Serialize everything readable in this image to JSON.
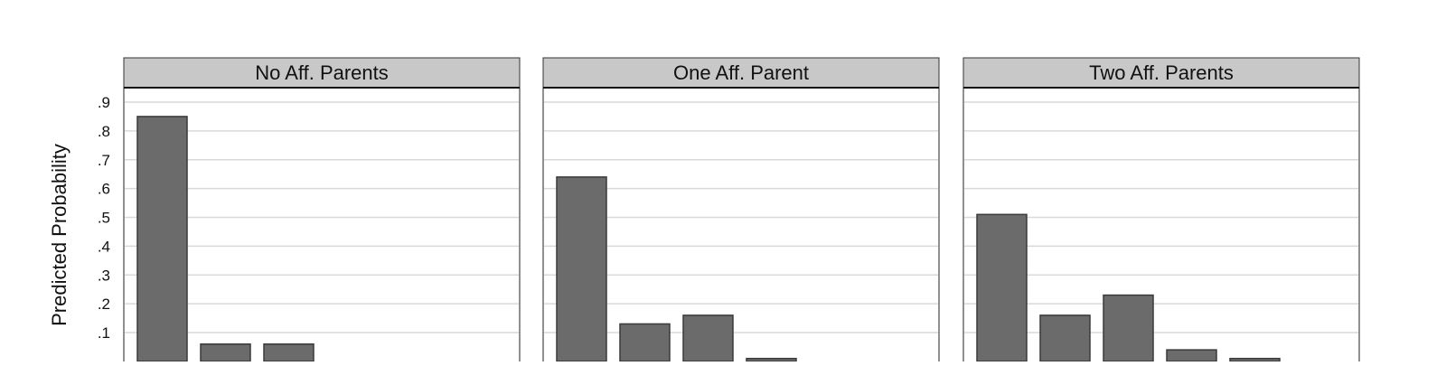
{
  "chart_data": {
    "type": "bar",
    "ylabel": "Predicted Probability",
    "yticks": [
      ".1",
      ".2",
      ".3",
      ".4",
      ".5",
      ".6",
      ".7",
      ".8",
      ".9"
    ],
    "ytick_values": [
      0.1,
      0.2,
      0.3,
      0.4,
      0.5,
      0.6,
      0.7,
      0.8,
      0.9
    ],
    "ylim": [
      0,
      0.93
    ],
    "grid": true,
    "bar_color": "#6b6b6b",
    "bar_edge_color": "#3a3a3a",
    "strip_color": "#c8c8c8",
    "panels": [
      {
        "title": "No Aff. Parents",
        "values": [
          0.85,
          0.06,
          0.06,
          0.0,
          0.0
        ]
      },
      {
        "title": "One Aff. Parent",
        "values": [
          0.64,
          0.13,
          0.16,
          0.01,
          0.0
        ]
      },
      {
        "title": "Two Aff. Parents",
        "values": [
          0.51,
          0.16,
          0.23,
          0.04,
          0.01
        ]
      }
    ]
  }
}
